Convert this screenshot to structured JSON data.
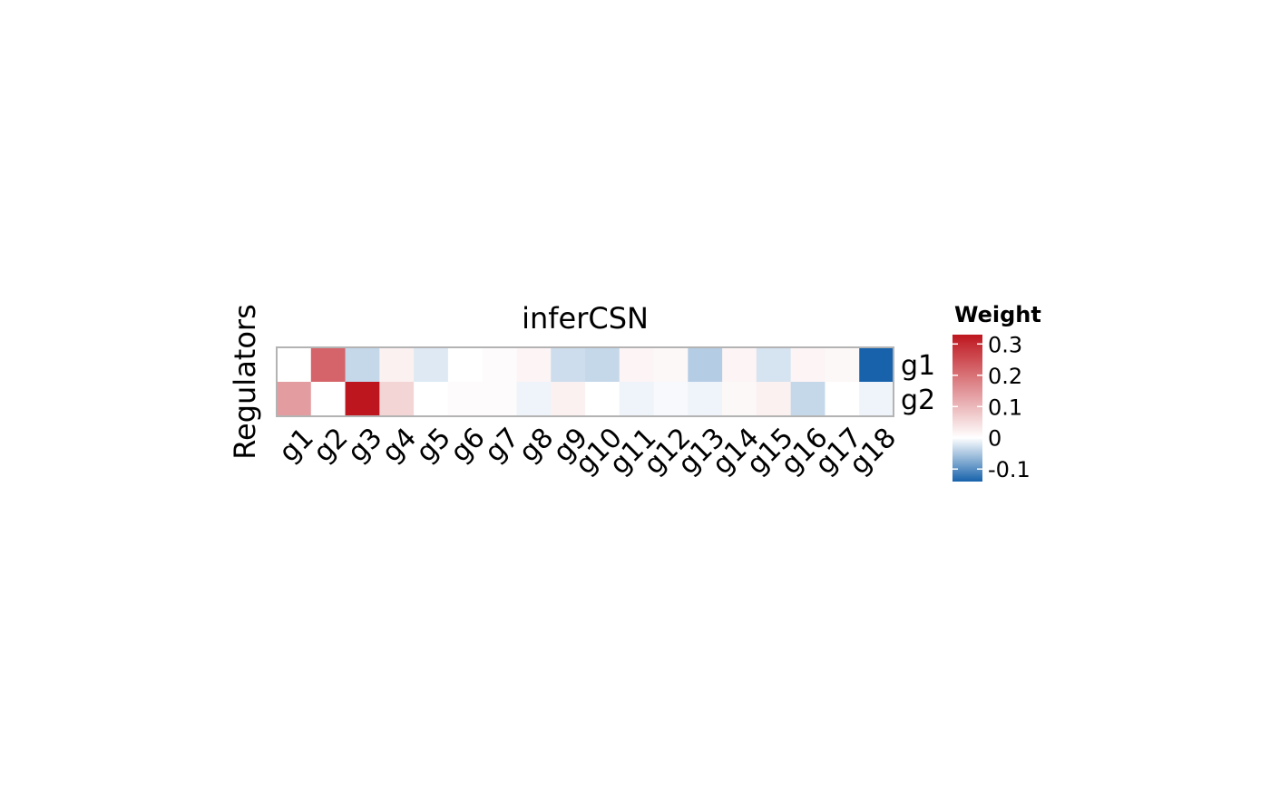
{
  "chart_data": {
    "type": "heatmap",
    "title": "inferCSN",
    "xlabel": "",
    "ylabel": "Regulators",
    "x_categories": [
      "g1",
      "g2",
      "g3",
      "g4",
      "g5",
      "g6",
      "g7",
      "g8",
      "g9",
      "g10",
      "g11",
      "g12",
      "g13",
      "g14",
      "g15",
      "g16",
      "g17",
      "g18"
    ],
    "y_categories": [
      "g1",
      "g2"
    ],
    "values": [
      [
        0.0,
        0.22,
        -0.035,
        0.02,
        -0.02,
        0.0,
        0.005,
        0.015,
        -0.03,
        -0.035,
        0.015,
        0.01,
        -0.045,
        0.015,
        -0.025,
        0.015,
        0.01,
        -0.14
      ],
      [
        0.14,
        0.0,
        0.33,
        0.06,
        0.0,
        0.005,
        0.005,
        -0.01,
        0.02,
        0.0,
        -0.01,
        -0.005,
        -0.01,
        0.01,
        0.02,
        -0.035,
        0.0,
        -0.01
      ]
    ],
    "colorbar": {
      "title": "Weight",
      "min": -0.14,
      "max": 0.33,
      "ticks": [
        0.3,
        0.2,
        0.1,
        0,
        -0.1
      ],
      "tick_labels": [
        "0.3",
        "0.2",
        "0.1",
        "0",
        "-0.1"
      ],
      "low_color": "#1762ab",
      "mid_color": "#ffffff",
      "high_color": "#be161e"
    },
    "grid": false,
    "legend_position": "right"
  }
}
